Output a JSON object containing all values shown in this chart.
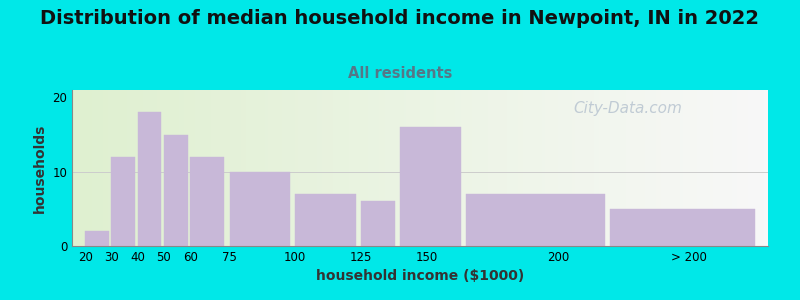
{
  "title": "Distribution of median household income in Newpoint, IN in 2022",
  "subtitle": "All residents",
  "xlabel": "household income ($1000)",
  "ylabel": "households",
  "background_color": "#00e8e8",
  "bar_color": "#c8b8d8",
  "bar_edgecolor": "#c8b8d8",
  "categories": [
    "20",
    "30",
    "40",
    "50",
    "60",
    "75",
    "100",
    "125",
    "150",
    "200",
    "> 200"
  ],
  "values": [
    2,
    12,
    18,
    15,
    12,
    10,
    7,
    6,
    16,
    7,
    5
  ],
  "bar_lefts": [
    20,
    30,
    40,
    50,
    60,
    75,
    100,
    125,
    140,
    165,
    220
  ],
  "bar_widths": [
    9,
    9,
    9,
    9,
    13,
    23,
    23,
    13,
    23,
    53,
    55
  ],
  "tick_positions": [
    20,
    30,
    40,
    50,
    60,
    75,
    100,
    125,
    150,
    200,
    250
  ],
  "xlim": [
    15,
    280
  ],
  "ylim": [
    0,
    21
  ],
  "yticks": [
    0,
    10,
    20
  ],
  "title_fontsize": 14,
  "subtitle_fontsize": 10.5,
  "label_fontsize": 10,
  "watermark_text": "City-Data.com",
  "watermark_color": "#b8c4d0",
  "watermark_fontsize": 11,
  "title_color": "#111111",
  "subtitle_color": "#557788",
  "ylabel_color": "#333333",
  "xlabel_color": "#333333"
}
